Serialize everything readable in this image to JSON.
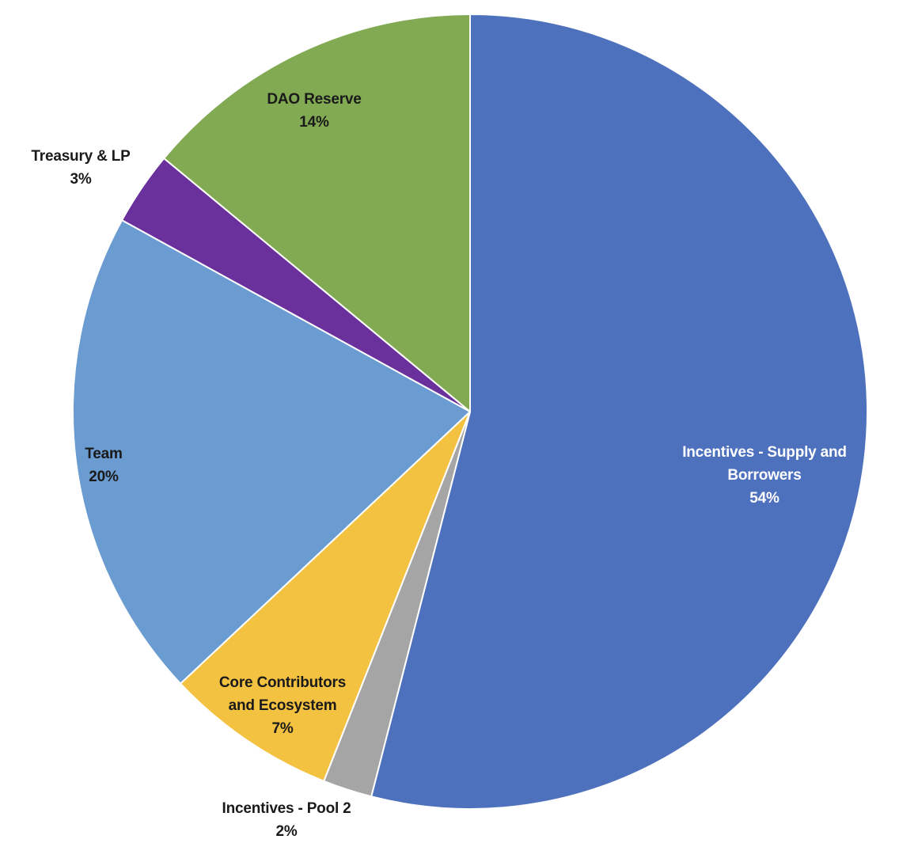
{
  "chart_data": {
    "type": "pie",
    "title": "",
    "slices": [
      {
        "label_lines": [
          "Incentives - Supply and",
          "Borrowers"
        ],
        "value_label": "54%",
        "value": 54,
        "color": "#4E71BE"
      },
      {
        "label_lines": [
          "Incentives - Pool 2"
        ],
        "value_label": "2%",
        "value": 2,
        "color": "#A5A5A5"
      },
      {
        "label_lines": [
          "Core Contributors",
          "and Ecosystem"
        ],
        "value_label": "7%",
        "value": 7,
        "color": "#F4C241"
      },
      {
        "label_lines": [
          "Team"
        ],
        "value_label": "20%",
        "value": 20,
        "color": "#6A9BD1"
      },
      {
        "label_lines": [
          "Treasury & LP"
        ],
        "value_label": "3%",
        "value": 3,
        "color": "#6A309B"
      },
      {
        "label_lines": [
          "DAO Reserve"
        ],
        "value_label": "14%",
        "value": 14,
        "color": "#81AA53"
      }
    ]
  }
}
